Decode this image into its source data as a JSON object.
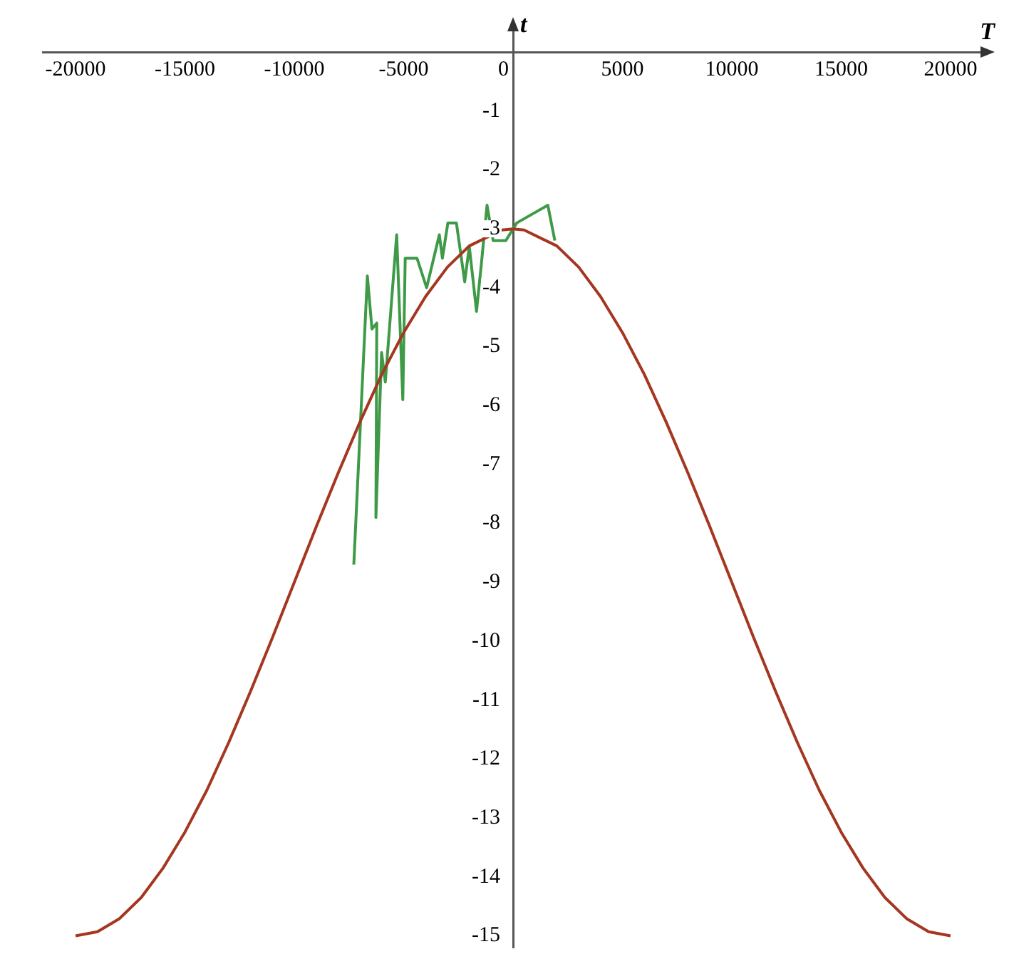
{
  "chart_data": {
    "type": "line",
    "xlabel": "T",
    "ylabel": "t",
    "xlim": [
      -21500,
      21500
    ],
    "ylim": [
      -15.2,
      0.4
    ],
    "xticks": [
      -20000,
      -15000,
      -10000,
      -5000,
      0,
      5000,
      10000,
      15000,
      20000
    ],
    "yticks": [
      -1,
      -2,
      -3,
      -4,
      -5,
      -6,
      -7,
      -8,
      -9,
      -10,
      -11,
      -12,
      -13,
      -14,
      -15
    ],
    "marker": "none",
    "legend": false,
    "series": [
      {
        "color": "#a5361f",
        "x": [
          -20000,
          -19000,
          -18000,
          -17000,
          -16000,
          -15000,
          -14000,
          -13000,
          -12000,
          -11000,
          -10000,
          -9000,
          -8000,
          -7000,
          -6000,
          -5000,
          -4000,
          -3000,
          -2000,
          -500,
          0,
          500,
          2000,
          3000,
          4000,
          5000,
          6000,
          7000,
          8000,
          9000,
          10000,
          11000,
          12000,
          13000,
          14000,
          15000,
          16000,
          17000,
          18000,
          19000,
          20000
        ],
        "values": [
          -15,
          -14.93,
          -14.71,
          -14.35,
          -13.85,
          -13.24,
          -12.53,
          -11.72,
          -10.85,
          -9.94,
          -9,
          -8.06,
          -7.15,
          -6.28,
          -5.47,
          -4.76,
          -4.15,
          -3.65,
          -3.29,
          -3.02,
          -3,
          -3.02,
          -3.29,
          -3.65,
          -4.15,
          -4.76,
          -5.47,
          -6.28,
          -7.15,
          -8.06,
          -9,
          -9.94,
          -10.85,
          -11.72,
          -12.53,
          -13.24,
          -13.85,
          -14.35,
          -14.71,
          -14.93,
          -15
        ]
      },
      {
        "color": "#3f9a48",
        "x": [
          -7280,
          -6660,
          -6450,
          -6230,
          -6270,
          -6010,
          -5840,
          -5320,
          -5040,
          -4930,
          -4390,
          -3950,
          -3370,
          -3230,
          -2980,
          -2590,
          -2210,
          -2000,
          -1670,
          -1450,
          -1190,
          -910,
          -330,
          170,
          1590,
          1910
        ],
        "values": [
          -8.7,
          -3.8,
          -4.7,
          -4.6,
          -7.9,
          -5.1,
          -5.6,
          -3.1,
          -5.9,
          -3.5,
          -3.5,
          -4,
          -3.1,
          -3.5,
          -2.9,
          -2.9,
          -3.9,
          -3.3,
          -4.4,
          -3.6,
          -2.6,
          -3.2,
          -3.2,
          -2.9,
          -2.6,
          -3.2
        ]
      }
    ]
  }
}
